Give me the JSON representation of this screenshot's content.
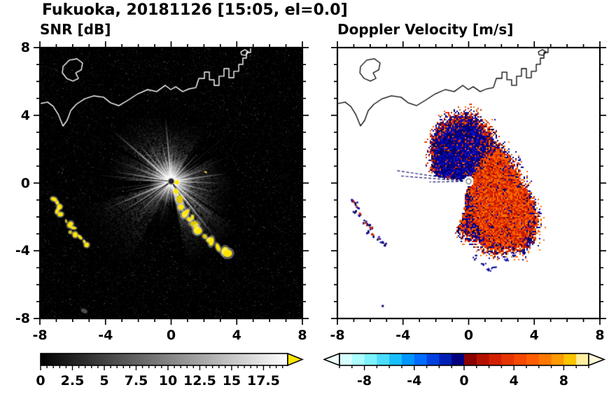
{
  "title": "Fukuoka, 20181126 [15:05, el=0.0]",
  "panels": {
    "snr": {
      "title": "SNR [dB]"
    },
    "doppler": {
      "title": "Doppler Velocity [m/s]"
    }
  },
  "axes": {
    "xlim": [
      -8,
      8
    ],
    "ylim": [
      -8,
      8
    ],
    "major_ticks": [
      -8,
      -4,
      0,
      4,
      8
    ],
    "major_tick_labels": [
      "-8",
      "-4",
      "0",
      "4",
      "8"
    ],
    "minor_tick_step": 1
  },
  "colorbars": {
    "snr": {
      "range": [
        0,
        19.4
      ],
      "tick_values": [
        0,
        2.5,
        5,
        7.5,
        10,
        12.5,
        15,
        17.5
      ],
      "tick_labels": [
        "0",
        "2.5",
        "5",
        "7.5",
        "10",
        "12.5",
        "15",
        "17.5"
      ],
      "minor_tick_step": 0.5,
      "gradient_start": "#000000",
      "gradient_end": "#ffffff",
      "over_arrow_color": "#ffe600"
    },
    "doppler": {
      "range": [
        -10,
        10
      ],
      "tick_values": [
        -8,
        -4,
        0,
        4,
        8
      ],
      "tick_labels": [
        "-8",
        "-4",
        "0",
        "4",
        "8"
      ],
      "minor_tick_step": 1,
      "segment_colors": [
        "#d8ffff",
        "#aaffff",
        "#7df2ff",
        "#4cdcff",
        "#19bfff",
        "#0096ff",
        "#006cff",
        "#0041e0",
        "#001fb4",
        "#000080",
        "#8b0000",
        "#b41000",
        "#d22000",
        "#e63400",
        "#f64800",
        "#ff5e00",
        "#ff7800",
        "#ff9a00",
        "#ffc400",
        "#ffef9e"
      ],
      "under_arrow_color": "#f0ffff",
      "over_arrow_color": "#fffbd8"
    }
  },
  "map": {
    "coastline": [
      [
        -8,
        4.69
      ],
      [
        -7.53,
        4.78
      ],
      [
        -7.19,
        4.53
      ],
      [
        -6.89,
        4.07
      ],
      [
        -6.59,
        3.37
      ],
      [
        -6.34,
        3.7
      ],
      [
        -6.12,
        4.28
      ],
      [
        -5.78,
        4.65
      ],
      [
        -5.27,
        4.98
      ],
      [
        -4.71,
        5.15
      ],
      [
        -4.12,
        5.07
      ],
      [
        -3.69,
        4.74
      ],
      [
        -3.18,
        4.57
      ],
      [
        -2.62,
        4.9
      ],
      [
        -2.03,
        5.27
      ],
      [
        -1.43,
        5.52
      ],
      [
        -0.88,
        5.4
      ],
      [
        -0.36,
        5.77
      ],
      [
        -0.02,
        5.52
      ],
      [
        0.28,
        5.69
      ],
      [
        0.7,
        5.4
      ],
      [
        1.09,
        5.56
      ],
      [
        1.51,
        5.64
      ],
      [
        1.69,
        6.18
      ],
      [
        2.03,
        6.18
      ],
      [
        2.03,
        6.55
      ],
      [
        2.33,
        6.55
      ],
      [
        2.33,
        6.1
      ],
      [
        2.62,
        6.1
      ],
      [
        2.62,
        5.77
      ],
      [
        2.92,
        5.77
      ],
      [
        2.92,
        6.31
      ],
      [
        3.22,
        6.31
      ],
      [
        3.22,
        6.76
      ],
      [
        3.52,
        6.76
      ],
      [
        3.52,
        6.22
      ],
      [
        3.82,
        6.22
      ],
      [
        3.82,
        6.6
      ],
      [
        4.12,
        6.6
      ],
      [
        4.12,
        7.01
      ],
      [
        4.37,
        7.01
      ],
      [
        4.37,
        7.38
      ],
      [
        4.59,
        7.38
      ],
      [
        4.59,
        7.71
      ],
      [
        4.84,
        7.71
      ],
      [
        4.84,
        8.0
      ]
    ],
    "island": [
      [
        -6.59,
        6.88
      ],
      [
        -6.21,
        7.26
      ],
      [
        -5.74,
        7.34
      ],
      [
        -5.4,
        7.09
      ],
      [
        -5.48,
        6.68
      ],
      [
        -5.82,
        6.51
      ],
      [
        -5.65,
        6.18
      ],
      [
        -5.99,
        6.02
      ],
      [
        -6.37,
        6.18
      ],
      [
        -6.63,
        6.51
      ]
    ],
    "islet": [
      [
        4.25,
        7.75
      ],
      [
        4.5,
        7.88
      ],
      [
        4.71,
        7.75
      ],
      [
        4.54,
        7.54
      ],
      [
        4.29,
        7.58
      ]
    ]
  },
  "chart_data": [
    {
      "type": "heatmap",
      "title": "SNR [dB]",
      "xlabel": "",
      "ylabel": "",
      "xlim": [
        -8,
        8
      ],
      "ylim": [
        -8,
        8
      ],
      "x_ticks": [
        -8,
        -4,
        0,
        4,
        8
      ],
      "y_ticks": [
        -8,
        -4,
        0,
        4,
        8
      ],
      "grid": false,
      "legend": "none",
      "colormap": "grayscale 0 to 17.5 dB, values above 17.5 shown yellow",
      "colorbar_ticks": [
        0,
        2.5,
        5,
        7.5,
        10,
        12.5,
        15,
        17.5
      ],
      "radar_center": [
        0,
        0.1
      ],
      "description": "Radar PPI scan: dark noise background, bright white beams radiating from the radar at the origin, yellow high-SNR ground-clutter echoes along a ridge to the south-east and two small patches to the west; white coastline of Fukuoka bay drawn across the top.",
      "features": {
        "center": [
          0,
          0.1
        ],
        "seed": 42,
        "speckle_count": 13000,
        "minor_ray_count": 55,
        "yellow_color": "#ffe600",
        "rays": [
          {
            "a": 139,
            "len": 4.8,
            "w": 2.0,
            "alpha": 0.95
          },
          {
            "a": 131,
            "len": 3.2,
            "w": 1.5,
            "alpha": 0.8
          },
          {
            "a": 122,
            "len": 2.6,
            "w": 1.5,
            "alpha": 0.8
          },
          {
            "a": 112,
            "len": 2.1,
            "w": 1.5,
            "alpha": 0.75
          },
          {
            "a": 104,
            "len": 2.6,
            "w": 1.5,
            "alpha": 0.8
          },
          {
            "a": 95,
            "len": 3.9,
            "w": 2.0,
            "alpha": 0.9
          },
          {
            "a": 88,
            "len": 2.5,
            "w": 1.5,
            "alpha": 0.8
          },
          {
            "a": 80,
            "len": 1.9,
            "w": 1.5,
            "alpha": 0.7
          },
          {
            "a": 70,
            "len": 1.7,
            "w": 1.5,
            "alpha": 0.7
          },
          {
            "a": 58,
            "len": 2.1,
            "w": 1.5,
            "alpha": 0.75
          },
          {
            "a": 46,
            "len": 2.4,
            "w": 1.5,
            "alpha": 0.8
          },
          {
            "a": 33,
            "len": 2.2,
            "w": 1.5,
            "alpha": 0.7
          },
          {
            "a": 20,
            "len": 2.8,
            "w": 1.5,
            "alpha": 0.8
          },
          {
            "a": 8,
            "len": 3.4,
            "w": 2.0,
            "alpha": 0.9
          },
          {
            "a": -2,
            "len": 3.2,
            "w": 1.5,
            "alpha": 0.85
          },
          {
            "a": -14,
            "len": 2.8,
            "w": 1.5,
            "alpha": 0.8
          },
          {
            "a": -27,
            "len": 2.5,
            "w": 1.5,
            "alpha": 0.75
          },
          {
            "a": -40,
            "len": 3.4,
            "w": 1.5,
            "alpha": 0.85
          },
          {
            "a": -52,
            "len": 4.4,
            "w": 2.0,
            "alpha": 0.95
          },
          {
            "a": -63,
            "len": 3.6,
            "w": 1.5,
            "alpha": 0.85
          },
          {
            "a": -75,
            "len": 2.6,
            "w": 1.5,
            "alpha": 0.8
          },
          {
            "a": -88,
            "len": 1.8,
            "w": 1.5,
            "alpha": 0.7
          },
          {
            "a": -105,
            "len": 1.6,
            "w": 1.5,
            "alpha": 0.6
          },
          {
            "a": -122,
            "len": 2.2,
            "w": 1.5,
            "alpha": 0.7
          },
          {
            "a": -136,
            "len": 2.8,
            "w": 1.5,
            "alpha": 0.75
          },
          {
            "a": -148,
            "len": 3.5,
            "w": 1.8,
            "alpha": 0.85
          },
          {
            "a": -157,
            "len": 4.3,
            "w": 1.8,
            "alpha": 0.85
          },
          {
            "a": -168,
            "len": 3.0,
            "w": 1.5,
            "alpha": 0.75
          },
          {
            "a": 178,
            "len": 2.9,
            "w": 1.5,
            "alpha": 0.8
          },
          {
            "a": 170,
            "len": 3.6,
            "w": 1.5,
            "alpha": 0.8
          },
          {
            "a": 160,
            "len": 2.4,
            "w": 1.5,
            "alpha": 0.7
          },
          {
            "a": 150,
            "len": 2.8,
            "w": 1.5,
            "alpha": 0.75
          }
        ],
        "wedges": [
          {
            "a0": 150,
            "a1": 178,
            "rmax": 4.4,
            "base": 150,
            "count": 2600
          },
          {
            "a0": 196,
            "a1": 242,
            "rmax": 6.6,
            "base": 130,
            "count": 6000
          },
          {
            "a0": -78,
            "a1": -36,
            "rmax": 5.4,
            "base": 190,
            "count": 7000
          },
          {
            "a0": -34,
            "a1": 6,
            "rmax": 4.2,
            "base": 150,
            "count": 3500
          },
          {
            "a0": 58,
            "a1": 100,
            "rmax": 4.2,
            "base": 150,
            "count": 3000
          },
          {
            "a0": 100,
            "a1": 146,
            "rmax": 4.9,
            "base": 160,
            "count": 3800
          },
          {
            "a0": 6,
            "a1": 30,
            "rmax": 3.6,
            "base": 140,
            "count": 2000
          },
          {
            "a0": -130,
            "a1": -96,
            "rmax": 3.2,
            "base": 110,
            "count": 1500
          }
        ],
        "shadow_rays": [
          {
            "a": -57,
            "len": 4.6,
            "w": 1.4
          },
          {
            "a": 214,
            "len": 5.6,
            "w": 1.2
          },
          {
            "a": 222,
            "len": 5.2,
            "w": 1.0
          },
          {
            "a": -49,
            "len": 4.2,
            "w": 1.0
          },
          {
            "a": 174,
            "len": 3.8,
            "w": 1.0
          }
        ],
        "yellow_chains": [
          {
            "size": 0.17,
            "points": [
              [
                0.3,
                -0.5
              ],
              [
                0.52,
                -0.95
              ],
              [
                0.6,
                -1.42
              ],
              [
                0.82,
                -1.85
              ],
              [
                0.95,
                -1.72
              ],
              [
                1.1,
                -2.15
              ],
              [
                1.3,
                -2.02
              ],
              [
                1.42,
                -2.42
              ],
              [
                1.55,
                -2.75
              ],
              [
                1.68,
                -2.85
              ],
              [
                2.05,
                -3.15
              ],
              [
                2.3,
                -3.35
              ],
              [
                2.45,
                -3.45
              ],
              [
                2.85,
                -3.8
              ],
              [
                3.25,
                -4.0
              ],
              [
                3.45,
                -4.15
              ]
            ]
          },
          {
            "size": 0.1,
            "points": [
              [
                0.35,
                0.05
              ],
              [
                2.1,
                0.65
              ]
            ]
          },
          {
            "size": 0.13,
            "points": [
              [
                -7.15,
                -0.95
              ],
              [
                -6.95,
                -1.15
              ],
              [
                -6.8,
                -1.4
              ],
              [
                -6.95,
                -1.65
              ],
              [
                -6.75,
                -1.85
              ]
            ]
          },
          {
            "size": 0.13,
            "points": [
              [
                -6.4,
                -2.25
              ],
              [
                -6.15,
                -2.45
              ],
              [
                -5.95,
                -2.65
              ],
              [
                -6.15,
                -2.9
              ],
              [
                -5.85,
                -3.05
              ],
              [
                -5.55,
                -3.2
              ],
              [
                -5.3,
                -3.45
              ],
              [
                -5.15,
                -3.65
              ]
            ]
          }
        ],
        "gray_blobs": [
          [
            -5.3,
            -7.55
          ]
        ]
      }
    },
    {
      "type": "heatmap",
      "title": "Doppler Velocity [m/s]",
      "xlabel": "",
      "ylabel": "",
      "xlim": [
        -8,
        8
      ],
      "ylim": [
        -8,
        8
      ],
      "x_ticks": [
        -8,
        -4,
        0,
        4,
        8
      ],
      "y_ticks": [
        -8,
        -4,
        0,
        4,
        8
      ],
      "grid": false,
      "legend": "none",
      "colormap": "cyan-blue (negative, toward) to red-orange-yellow (positive, away), white = no data",
      "colorbar_ticks": [
        -8,
        -4,
        0,
        4,
        8
      ],
      "radar_center": [
        0,
        0.1
      ],
      "description": "Doppler velocity fan: dark-blue (negative) wedge toward the north/north-west, red-orange (positive) wedge toward the east through south, speckled fringes, small mixed echoes to the west; black coastline across the top.",
      "features": {
        "center": [
          0,
          0.1
        ],
        "seed": 7,
        "blue_fan": {
          "a0": 60,
          "a1": 170,
          "base": 1.9,
          "amp": 2.3,
          "peak": 98,
          "sigma": 48,
          "colors": [
            "#000070",
            "#000091",
            "#0000b4",
            "#1616c8",
            "#00004f"
          ]
        },
        "red_fan": {
          "a0": -102,
          "a1": 60,
          "base": 2.9,
          "amp": 2.5,
          "peak": -47,
          "sigma": 38,
          "colors": [
            "#cc1c00",
            "#e03000",
            "#f04600",
            "#ff5c00",
            "#ff7200",
            "#b81400"
          ]
        },
        "navy_blobs": [
          [
            0.85,
            -4.75
          ],
          [
            1.15,
            -5.1
          ],
          [
            1.5,
            -4.95
          ],
          [
            2.3,
            -4.5
          ],
          [
            2.75,
            -4.25
          ],
          [
            0.35,
            -4.35
          ],
          [
            3.3,
            -4.0
          ],
          [
            3.65,
            -3.5
          ]
        ],
        "left_patches": [
          {
            "points": [
              [
                -7.15,
                -0.95
              ],
              [
                -6.95,
                -1.15
              ],
              [
                -6.8,
                -1.4
              ],
              [
                -6.95,
                -1.65
              ],
              [
                -6.75,
                -1.85
              ]
            ]
          },
          {
            "points": [
              [
                -6.4,
                -2.25
              ],
              [
                -6.15,
                -2.45
              ],
              [
                -5.95,
                -2.65
              ],
              [
                -6.15,
                -2.9
              ],
              [
                -5.85,
                -3.05
              ],
              [
                -5.55,
                -3.2
              ],
              [
                -5.3,
                -3.45
              ],
              [
                -5.15,
                -3.65
              ]
            ]
          }
        ],
        "small_dots": [
          [
            -5.3,
            -7.2
          ]
        ],
        "thin_rays": [
          {
            "a": 171.5,
            "len": 4.5
          },
          {
            "a": 175.5,
            "len": 4.2
          },
          {
            "a": 181,
            "len": 2.4
          }
        ]
      }
    }
  ]
}
